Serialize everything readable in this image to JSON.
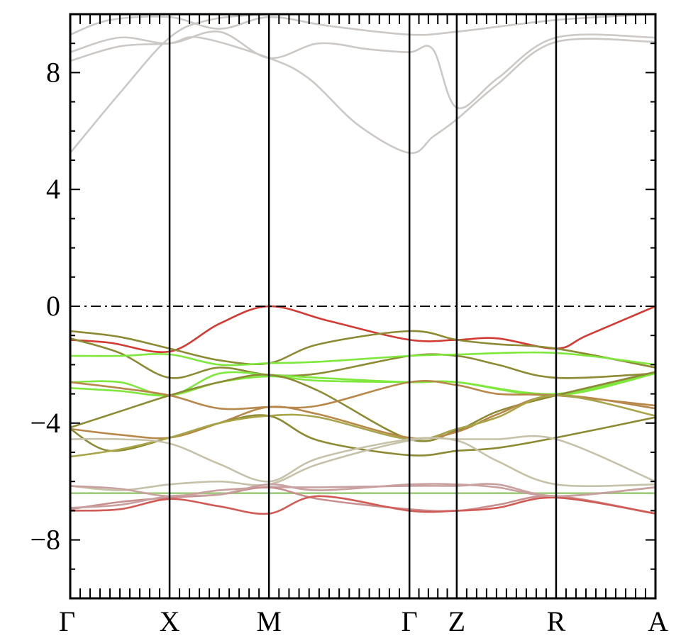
{
  "chart_data": {
    "type": "line",
    "xlabel": "",
    "ylabel": "",
    "title": "",
    "ylim": [
      -10,
      10
    ],
    "yticks": [
      -8,
      -4,
      0,
      4,
      8
    ],
    "ytick_labels": [
      "−8",
      "−4",
      "0",
      "4",
      "8"
    ],
    "kpoints": [
      {
        "label": "Γ",
        "x": 0.0
      },
      {
        "label": "X",
        "x": 1.0
      },
      {
        "label": "M",
        "x": 2.0
      },
      {
        "label": "Γ",
        "x": 3.414
      },
      {
        "label": "Z",
        "x": 3.89
      },
      {
        "label": "R",
        "x": 4.89
      },
      {
        "label": "A",
        "x": 5.89
      }
    ],
    "fermi_level": 0,
    "colors": {
      "red": "#d23a32",
      "olive": "#8c8a32",
      "green": "#7ee83c",
      "gray": "#cbc8c6",
      "pink": "#c98e8e",
      "tan": "#b89a70"
    },
    "series": [
      {
        "color": "#cbc8c6",
        "x": [
          0,
          0.5,
          1,
          1.4,
          2,
          2.5,
          3.414,
          3.89,
          4.89,
          5.89
        ],
        "y": [
          5.25,
          7.3,
          9.2,
          9.8,
          10,
          10,
          10,
          10,
          10,
          10
        ]
      },
      {
        "color": "#cbc8c6",
        "x": [
          0,
          0.5,
          1,
          1.3,
          2,
          2.4,
          2.9,
          3.414,
          3.65,
          3.89,
          4.3,
          4.89,
          5.89
        ],
        "y": [
          8.4,
          8.9,
          9.0,
          9.2,
          8.5,
          7.8,
          6.2,
          5.25,
          5.8,
          6.4,
          7.6,
          9.05,
          9.05
        ]
      },
      {
        "color": "#cbc8c6",
        "x": [
          0,
          0.5,
          1,
          1.5,
          2,
          2.5,
          3.0,
          3.414,
          3.65,
          3.89,
          4.3,
          4.89,
          5.89
        ],
        "y": [
          8.7,
          9.2,
          9.0,
          9.4,
          8.5,
          9.0,
          8.8,
          8.7,
          8.8,
          6.8,
          7.8,
          9.2,
          9.2
        ]
      },
      {
        "color": "#cbc8c6",
        "x": [
          0,
          0.4,
          1,
          1.5,
          2,
          2.6,
          3.414,
          3.89,
          4.89,
          5.89
        ],
        "y": [
          9.3,
          9.8,
          9.9,
          9.5,
          9.9,
          9.6,
          9.3,
          9.4,
          9.8,
          10
        ]
      },
      {
        "color": "#d23a32",
        "x": [
          0,
          0.4,
          1,
          1.5,
          2,
          2.6,
          3.414,
          3.89,
          4.3,
          4.89,
          5.2,
          5.89
        ],
        "y": [
          -1.15,
          -1.25,
          -1.55,
          -0.6,
          0.0,
          -0.5,
          -1.15,
          -1.15,
          -1.1,
          -1.45,
          -1.0,
          0.0
        ]
      },
      {
        "color": "#8c8a32",
        "x": [
          0,
          0.5,
          1,
          1.5,
          2,
          2.5,
          3.414,
          3.89,
          4.3,
          4.89,
          5.89
        ],
        "y": [
          -0.85,
          -1.05,
          -1.45,
          -1.85,
          -1.95,
          -1.3,
          -0.85,
          -1.15,
          -1.3,
          -1.45,
          -2.1
        ]
      },
      {
        "color": "#8c8a32",
        "x": [
          0,
          0.5,
          1,
          1.5,
          2,
          2.5,
          3.414,
          3.89,
          4.3,
          4.89,
          5.89
        ],
        "y": [
          -1.1,
          -1.6,
          -2.45,
          -2.1,
          -2.35,
          -2.3,
          -1.7,
          -1.7,
          -2.0,
          -2.45,
          -2.3
        ]
      },
      {
        "color": "#7ee83c",
        "x": [
          0,
          0.5,
          1,
          1.5,
          2,
          2.5,
          3.414,
          3.89,
          4.89,
          5.89
        ],
        "y": [
          -1.7,
          -1.7,
          -1.65,
          -2.0,
          -1.95,
          -1.9,
          -1.7,
          -1.65,
          -1.6,
          -2.0
        ]
      },
      {
        "color": "#7ee83c",
        "x": [
          0,
          0.5,
          1,
          1.5,
          2,
          2.5,
          3.414,
          3.89,
          4.89,
          5.89
        ],
        "y": [
          -2.6,
          -2.6,
          -3.05,
          -2.3,
          -2.35,
          -2.45,
          -2.6,
          -2.6,
          -3.05,
          -2.3
        ]
      },
      {
        "color": "#7ee83c",
        "x": [
          0,
          0.5,
          1,
          1.5,
          2,
          2.5,
          3.414,
          3.89,
          4.89,
          5.89
        ],
        "y": [
          -2.8,
          -2.9,
          -3.05,
          -2.6,
          -2.4,
          -2.55,
          -2.6,
          -2.6,
          -3.0,
          -2.25
        ]
      },
      {
        "color": "#8c8a32",
        "x": [
          0,
          0.5,
          1,
          1.5,
          2,
          2.5,
          3.414,
          3.89,
          4.3,
          4.89,
          5.89
        ],
        "y": [
          -4.15,
          -3.6,
          -3.05,
          -2.6,
          -2.35,
          -2.9,
          -4.55,
          -4.25,
          -3.6,
          -3.05,
          -2.25
        ]
      },
      {
        "color": "#b8874a",
        "x": [
          0,
          0.5,
          1,
          1.5,
          2,
          2.5,
          3.414,
          3.89,
          4.3,
          4.89,
          5.89
        ],
        "y": [
          -2.6,
          -2.8,
          -3.05,
          -3.5,
          -3.45,
          -3.4,
          -2.6,
          -2.7,
          -3.0,
          -3.05,
          -3.4
        ]
      },
      {
        "color": "#b8874a",
        "x": [
          0,
          0.5,
          1,
          1.5,
          2,
          2.5,
          3.414,
          3.89,
          4.3,
          4.89,
          5.89
        ],
        "y": [
          -4.2,
          -4.4,
          -4.5,
          -4.0,
          -3.45,
          -3.7,
          -4.5,
          -4.3,
          -3.7,
          -3.05,
          -3.5
        ]
      },
      {
        "color": "#8c8a32",
        "x": [
          0,
          0.4,
          1,
          1.5,
          2,
          2.5,
          3.414,
          3.89,
          4.3,
          4.89,
          5.89
        ],
        "y": [
          -4.2,
          -4.95,
          -4.5,
          -4.0,
          -3.75,
          -4.6,
          -5.1,
          -4.95,
          -4.85,
          -4.5,
          -3.8
        ]
      },
      {
        "color": "#a8a448",
        "x": [
          0,
          0.5,
          1,
          1.5,
          2,
          2.5,
          3.414,
          3.89,
          4.3,
          4.89,
          5.89
        ],
        "y": [
          -5.15,
          -4.9,
          -4.5,
          -4.0,
          -3.75,
          -3.8,
          -4.55,
          -4.2,
          -3.8,
          -3.05,
          -3.75
        ]
      },
      {
        "color": "#c6c2aa",
        "x": [
          0,
          0.5,
          1,
          1.5,
          2,
          2.5,
          3.414,
          3.89,
          4.3,
          4.89,
          5.89
        ],
        "y": [
          -4.55,
          -4.55,
          -4.7,
          -5.4,
          -6.0,
          -5.2,
          -4.55,
          -4.55,
          -4.55,
          -4.55,
          -6.0
        ]
      },
      {
        "color": "#c6c2aa",
        "x": [
          0,
          0.5,
          1,
          1.5,
          2,
          2.5,
          3.414,
          3.89,
          4.3,
          4.89,
          5.89
        ],
        "y": [
          -6.15,
          -6.3,
          -6.1,
          -6.0,
          -6.1,
          -5.4,
          -4.6,
          -4.6,
          -5.3,
          -6.1,
          -6.1
        ]
      },
      {
        "color": "#9dcc7c",
        "x": [
          0,
          0.5,
          1,
          1.5,
          2,
          2.5,
          3.414,
          3.89,
          4.89,
          5.89
        ],
        "y": [
          -6.4,
          -6.4,
          -6.4,
          -6.4,
          -6.4,
          -6.4,
          -6.4,
          -6.4,
          -6.4,
          -6.4
        ]
      },
      {
        "color": "#c9a0a0",
        "x": [
          0,
          0.5,
          1,
          1.5,
          2,
          2.5,
          3.414,
          3.89,
          4.3,
          4.89,
          5.89
        ],
        "y": [
          -6.15,
          -6.25,
          -6.5,
          -6.3,
          -6.2,
          -6.2,
          -6.15,
          -6.15,
          -6.1,
          -6.5,
          -6.2
        ]
      },
      {
        "color": "#c98e8e",
        "x": [
          0,
          0.5,
          1,
          1.5,
          2,
          2.5,
          3.414,
          3.89,
          4.3,
          4.89,
          5.89
        ],
        "y": [
          -6.95,
          -6.7,
          -6.55,
          -6.45,
          -6.2,
          -6.6,
          -6.95,
          -7.0,
          -6.8,
          -6.5,
          -7.1
        ]
      },
      {
        "color": "#d25a55",
        "x": [
          0,
          0.5,
          1,
          1.5,
          2,
          2.5,
          3.414,
          3.89,
          4.3,
          4.89,
          5.89
        ],
        "y": [
          -7.0,
          -6.95,
          -6.6,
          -6.85,
          -7.1,
          -6.5,
          -7.0,
          -7.0,
          -6.9,
          -6.55,
          -7.1
        ]
      },
      {
        "color": "#c9a0a0",
        "x": [
          0,
          0.5,
          1,
          1.5,
          2,
          2.5,
          3.414,
          3.89,
          4.3,
          4.89,
          5.89
        ],
        "y": [
          -6.9,
          -6.8,
          -6.5,
          -6.45,
          -6.1,
          -6.3,
          -6.1,
          -6.1,
          -6.2,
          -6.5,
          -6.2
        ]
      }
    ]
  }
}
